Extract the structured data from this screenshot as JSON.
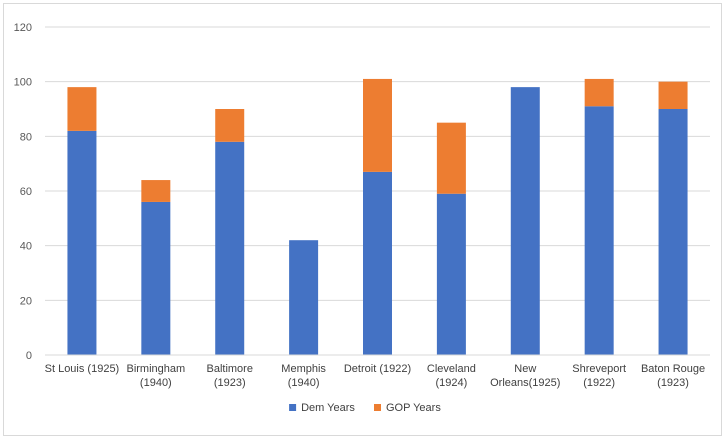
{
  "chart_data": {
    "type": "bar",
    "stacked": true,
    "categories": [
      [
        "St Louis (1925)"
      ],
      [
        "Birmingham",
        "(1940)"
      ],
      [
        "Baltimore",
        "(1923)"
      ],
      [
        "Memphis",
        "(1940)"
      ],
      [
        "Detroit (1922)"
      ],
      [
        "Cleveland",
        "(1924)"
      ],
      [
        "New",
        "Orleans(1925)"
      ],
      [
        "Shreveport",
        "(1922)"
      ],
      [
        "Baton Rouge",
        "(1923)"
      ]
    ],
    "series": [
      {
        "name": "Dem Years",
        "color": "#4472C4",
        "values": [
          82,
          56,
          78,
          42,
          67,
          59,
          98,
          91,
          90
        ]
      },
      {
        "name": "GOP Years",
        "color": "#ED7D31",
        "values": [
          16,
          8,
          12,
          0,
          34,
          26,
          0,
          10,
          10
        ]
      }
    ],
    "ylim": [
      0,
      120
    ],
    "yticks": [
      0,
      20,
      40,
      60,
      80,
      100,
      120
    ],
    "grid": true,
    "legend": "bottom"
  }
}
